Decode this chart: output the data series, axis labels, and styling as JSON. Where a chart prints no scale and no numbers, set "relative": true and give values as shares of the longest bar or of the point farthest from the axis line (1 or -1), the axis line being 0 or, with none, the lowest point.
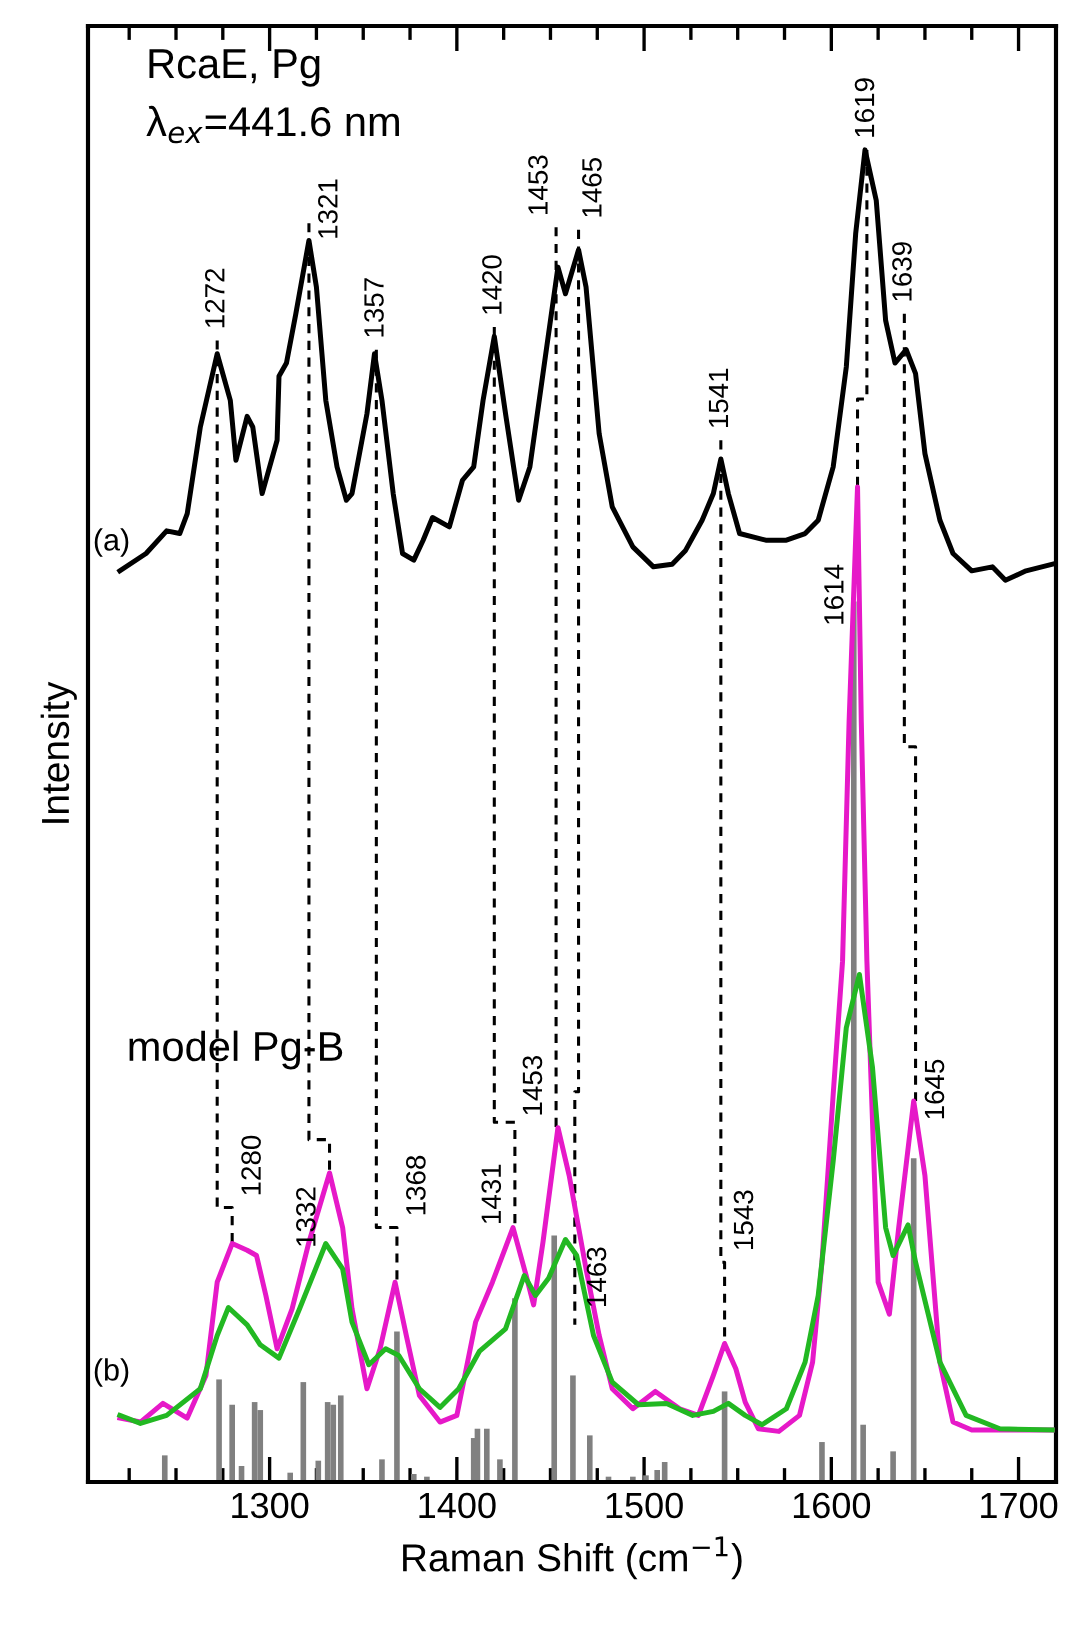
{
  "chart_data": {
    "type": "line",
    "relative": true,
    "xlabel": "Raman Shift (cm$^{−1}$)",
    "ylabel": "Intensity",
    "xlim": [
      1203,
      1720
    ],
    "xticks": [
      {
        "value": 1225,
        "label": null
      },
      {
        "value": 1250,
        "label": null
      },
      {
        "value": 1275,
        "label": null
      },
      1300,
      {
        "value": 1325,
        "label": null
      },
      {
        "value": 1350,
        "label": null
      },
      {
        "value": 1375,
        "label": null
      },
      1400,
      {
        "value": 1425,
        "label": null
      },
      {
        "value": 1450,
        "label": null
      },
      {
        "value": 1475,
        "label": null
      },
      1500,
      {
        "value": 1525,
        "label": null
      },
      {
        "value": 1550,
        "label": null
      },
      {
        "value": 1575,
        "label": null
      },
      1600,
      {
        "value": 1625,
        "label": null
      },
      {
        "value": 1650,
        "label": null
      },
      {
        "value": 1675,
        "label": null
      },
      1700
    ],
    "tick_labels": "x",
    "grid": false,
    "legend": false,
    "marker": "none",
    "series": [
      {
        "color": "#000000",
        "x": [
          1220,
          1234,
          1245,
          1252,
          1256,
          1263,
          1272,
          1279,
          1282,
          1288,
          1291,
          1296,
          1304,
          1305,
          1309,
          1314,
          1321,
          1325,
          1330,
          1336,
          1341,
          1344,
          1352,
          1356,
          1360,
          1366,
          1371,
          1377,
          1382,
          1387,
          1396,
          1403,
          1409,
          1414,
          1420,
          1426,
          1433,
          1439,
          1446,
          1454,
          1458,
          1465,
          1469,
          1476,
          1483,
          1494,
          1505,
          1515,
          1522,
          1531,
          1537,
          1541,
          1545,
          1551,
          1565,
          1576,
          1586,
          1593,
          1601,
          1608,
          1613,
          1618,
          1624,
          1629,
          1634,
          1640,
          1645,
          1650,
          1658,
          1665,
          1675,
          1686,
          1693,
          1704,
          1718
        ],
        "values": [
          0.684,
          0.697,
          0.714,
          0.712,
          0.727,
          0.792,
          0.847,
          0.812,
          0.767,
          0.8,
          0.792,
          0.742,
          0.782,
          0.83,
          0.84,
          0.877,
          0.932,
          0.897,
          0.812,
          0.762,
          0.737,
          0.742,
          0.802,
          0.847,
          0.812,
          0.742,
          0.697,
          0.692,
          0.707,
          0.724,
          0.717,
          0.752,
          0.762,
          0.812,
          0.86,
          0.802,
          0.737,
          0.762,
          0.832,
          0.912,
          0.892,
          0.925,
          0.897,
          0.787,
          0.732,
          0.702,
          0.687,
          0.689,
          0.699,
          0.722,
          0.742,
          0.768,
          0.742,
          0.712,
          0.707,
          0.707,
          0.712,
          0.722,
          0.762,
          0.837,
          0.937,
          1.0,
          0.962,
          0.872,
          0.84,
          0.85,
          0.832,
          0.772,
          0.722,
          0.697,
          0.684,
          0.687,
          0.677,
          0.684,
          0.689
        ]
      },
      {
        "type": "bar",
        "color": "#808080",
        "x": [
          1244,
          1273,
          1280,
          1285,
          1292,
          1295,
          1311,
          1318,
          1326,
          1331,
          1334,
          1338,
          1360,
          1368,
          1377,
          1384,
          1409,
          1411,
          1416,
          1423,
          1431,
          1452,
          1462,
          1471,
          1481,
          1494,
          1501,
          1507,
          1511,
          1543,
          1595,
          1612,
          1617,
          1633,
          1644
        ],
        "values": [
          0.02,
          0.077,
          0.058,
          0.012,
          0.06,
          0.054,
          0.007,
          0.075,
          0.016,
          0.06,
          0.058,
          0.065,
          0.017,
          0.113,
          0.006,
          0.004,
          0.033,
          0.04,
          0.04,
          0.017,
          0.138,
          0.185,
          0.08,
          0.035,
          0.004,
          0.004,
          0.005,
          0.009,
          0.015,
          0.068,
          0.03,
          0.661,
          0.043,
          0.023,
          0.243
        ]
      },
      {
        "color": "#e619c8",
        "x": [
          1220,
          1231,
          1243,
          1256,
          1266,
          1272,
          1280,
          1288,
          1293,
          1298,
          1304,
          1312,
          1321,
          1332,
          1339,
          1344,
          1352,
          1359,
          1367,
          1373,
          1380,
          1391,
          1400,
          1410,
          1419,
          1430,
          1437,
          1441,
          1446,
          1454,
          1460,
          1469,
          1476,
          1483,
          1494,
          1506,
          1519,
          1529,
          1537,
          1543,
          1549,
          1554,
          1561,
          1572,
          1583,
          1590,
          1595,
          1601,
          1606,
          1609.5,
          1614,
          1616,
          1619,
          1625,
          1631,
          1636,
          1644,
          1650,
          1658,
          1665,
          1675,
          1718
        ],
        "values": [
          0.048,
          0.045,
          0.059,
          0.048,
          0.08,
          0.15,
          0.179,
          0.174,
          0.17,
          0.14,
          0.1,
          0.13,
          0.18,
          0.232,
          0.191,
          0.13,
          0.07,
          0.1,
          0.15,
          0.11,
          0.065,
          0.045,
          0.05,
          0.12,
          0.15,
          0.191,
          0.155,
          0.133,
          0.18,
          0.266,
          0.23,
          0.16,
          0.11,
          0.07,
          0.055,
          0.068,
          0.055,
          0.05,
          0.08,
          0.104,
          0.085,
          0.06,
          0.04,
          0.038,
          0.05,
          0.09,
          0.165,
          0.291,
          0.391,
          0.571,
          0.747,
          0.571,
          0.391,
          0.15,
          0.126,
          0.191,
          0.286,
          0.23,
          0.09,
          0.045,
          0.039,
          0.039
        ]
      },
      {
        "color": "#22b822",
        "x": [
          1220,
          1231,
          1245,
          1263,
          1272,
          1278,
          1288,
          1295,
          1305,
          1316,
          1330,
          1339,
          1344,
          1353,
          1362,
          1369,
          1380,
          1391,
          1401,
          1412,
          1426,
          1436,
          1442,
          1449,
          1458,
          1464,
          1473,
          1483,
          1497,
          1512,
          1526,
          1537,
          1545,
          1554,
          1563,
          1576,
          1586,
          1593,
          1601,
          1608,
          1615,
          1622,
          1629,
          1633,
          1641,
          1645,
          1658,
          1672,
          1690,
          1718
        ],
        "values": [
          0.05,
          0.044,
          0.05,
          0.07,
          0.11,
          0.131,
          0.118,
          0.103,
          0.093,
          0.13,
          0.179,
          0.16,
          0.12,
          0.088,
          0.1,
          0.095,
          0.07,
          0.056,
          0.07,
          0.098,
          0.115,
          0.155,
          0.14,
          0.153,
          0.182,
          0.17,
          0.11,
          0.075,
          0.058,
          0.059,
          0.05,
          0.053,
          0.059,
          0.05,
          0.043,
          0.055,
          0.09,
          0.14,
          0.241,
          0.341,
          0.381,
          0.311,
          0.191,
          0.17,
          0.193,
          0.165,
          0.09,
          0.05,
          0.04,
          0.039
        ]
      },
      {
        "type": "line",
        "color": "#000000",
        "line_style": "dashed",
        "x": [
          1272,
          1272,
          1280,
          1280
        ],
        "values": [
          0.857,
          0.206,
          0.206,
          0.179
        ]
      },
      {
        "type": "line",
        "color": "#000000",
        "line_style": "dashed",
        "x": [
          1321,
          1321,
          1332,
          1332
        ],
        "values": [
          0.945,
          0.257,
          0.257,
          0.232
        ]
      },
      {
        "type": "line",
        "color": "#000000",
        "line_style": "dashed",
        "x": [
          1357,
          1357,
          1368,
          1368
        ],
        "values": [
          0.85,
          0.191,
          0.191,
          0.15
        ]
      },
      {
        "type": "line",
        "color": "#000000",
        "line_style": "dashed",
        "x": [
          1420,
          1420,
          1431,
          1431
        ],
        "values": [
          0.867,
          0.27,
          0.27,
          0.191
        ]
      },
      {
        "type": "line",
        "color": "#000000",
        "line_style": "dashed",
        "x": [
          1453,
          1453
        ],
        "values": [
          0.942,
          0.266
        ]
      },
      {
        "type": "line",
        "color": "#000000",
        "line_style": "dashed",
        "x": [
          1465,
          1465,
          1463,
          1463
        ],
        "values": [
          0.94,
          0.293,
          0.293,
          0.118
        ]
      },
      {
        "type": "line",
        "color": "#000000",
        "line_style": "dashed",
        "x": [
          1541,
          1541,
          1543,
          1543
        ],
        "values": [
          0.782,
          0.165,
          0.165,
          0.104
        ]
      },
      {
        "type": "line",
        "color": "#000000",
        "line_style": "dashed",
        "x": [
          1619,
          1619,
          1614,
          1614
        ],
        "values": [
          1.0,
          0.813,
          0.813,
          0.747
        ]
      },
      {
        "type": "line",
        "color": "#000000",
        "line_style": "dashed",
        "x": [
          1639,
          1639,
          1645,
          1645
        ],
        "values": [
          0.877,
          0.552,
          0.552,
          0.286
        ]
      }
    ],
    "annotations": [
      "RcaE, Pg",
      "λ$_{ex}$=441.6 nm",
      "(a)",
      "(b)",
      "model Pg-B",
      {
        "text": "1272",
        "x": 1272,
        "y": 0.857
      },
      {
        "text": "1321",
        "x": 1321,
        "y": 0.945
      },
      {
        "text": "1357",
        "x": 1357,
        "y": 0.85
      },
      {
        "text": "1420",
        "x": 1420,
        "y": 0.867
      },
      {
        "text": "1453",
        "x": 1453,
        "y": 0.942
      },
      {
        "text": "1465",
        "x": 1465,
        "y": 0.94
      },
      {
        "text": "1541",
        "x": 1541,
        "y": 0.782
      },
      {
        "text": "1619",
        "x": 1619,
        "y": 1.0
      },
      {
        "text": "1639",
        "x": 1639,
        "y": 0.877
      },
      {
        "text": "1280",
        "x": 1280,
        "y": 0.206
      },
      {
        "text": "1332",
        "x": 1332,
        "y": 0.257
      },
      {
        "text": "1368",
        "x": 1368,
        "y": 0.191
      },
      {
        "text": "1431",
        "x": 1431,
        "y": 0.27
      },
      {
        "text": "1453",
        "x": 1453,
        "y": 0.266
      },
      {
        "text": "1463",
        "x": 1463,
        "y": 0.118
      },
      {
        "text": "1543",
        "x": 1543,
        "y": 0.165
      },
      {
        "text": "1614",
        "x": 1614,
        "y": 0.747
      },
      {
        "text": "1645",
        "x": 1645,
        "y": 0.286
      }
    ]
  }
}
